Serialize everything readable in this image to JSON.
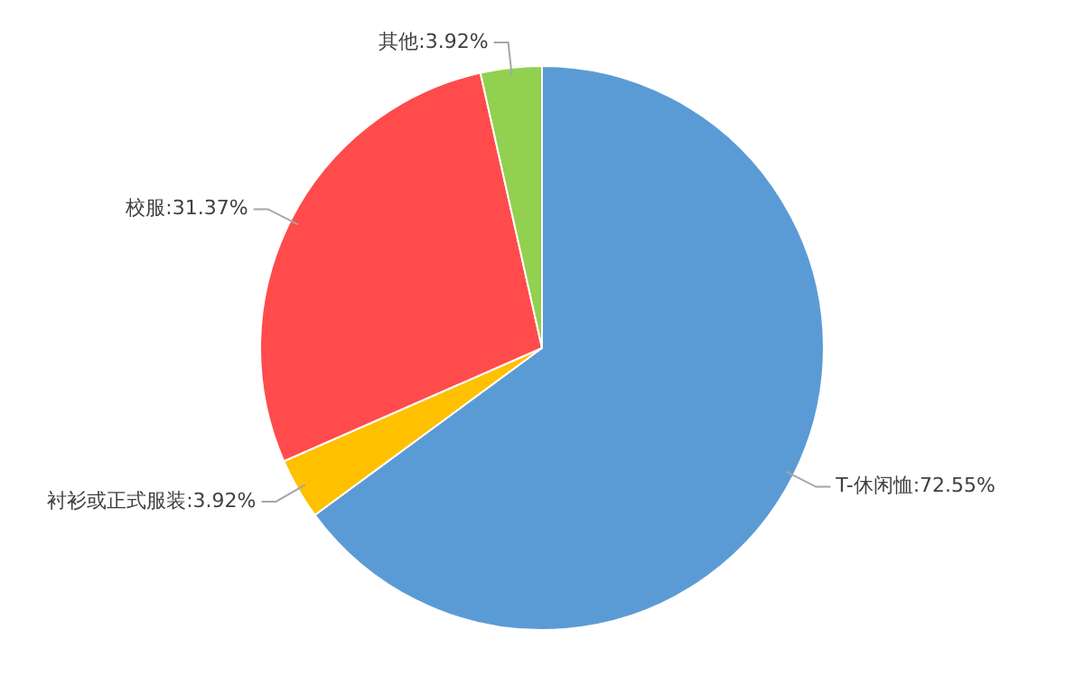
{
  "chart_data": {
    "type": "pie",
    "categories": [
      "T-休闲恤",
      "衬衫或正式服装",
      "校服",
      "其他"
    ],
    "values": [
      72.55,
      3.92,
      31.37,
      3.92
    ],
    "colors": [
      "#5b9bd5",
      "#ffc000",
      "#ff4b4b",
      "#92d050"
    ],
    "value_labels": [
      "72.55%",
      "3.92%",
      "31.37%",
      "3.92%"
    ],
    "legend": false
  }
}
